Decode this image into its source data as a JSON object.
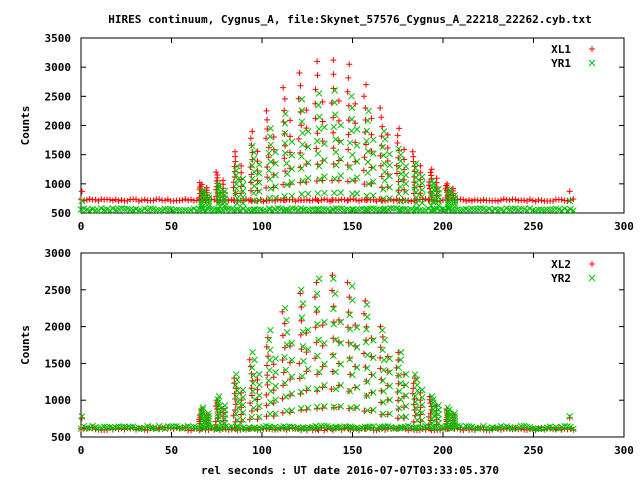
{
  "title": "HIRES continuum, Cygnus_A, file:Skynet_57576_Cygnus_A_22218_22262.cyb.txt",
  "xlabel": "rel seconds : UT date 2016-07-07T03:33:05.370",
  "colors": {
    "red": "#ff0000",
    "green": "#00c000",
    "frame": "#000000"
  },
  "chart_data": [
    {
      "type": "scatter",
      "ylabel": "Counts",
      "xlim": [
        0,
        300
      ],
      "ylim": [
        500,
        3500
      ],
      "xticks": [
        0,
        50,
        100,
        150,
        200,
        250,
        300
      ],
      "yticks": [
        500,
        1000,
        1500,
        2000,
        2500,
        3000,
        3500
      ],
      "legend_position": "top-right",
      "baseline": {
        "XL1": 720,
        "YR1": 560
      },
      "scan_peaks_x": [
        66,
        75,
        85,
        94,
        103,
        112,
        121,
        130,
        139,
        148,
        157,
        166,
        175,
        184,
        193,
        202
      ],
      "scan_peak_values": {
        "XL1": [
          1020,
          1200,
          1550,
          1900,
          2250,
          2650,
          2900,
          3100,
          3120,
          3050,
          2700,
          2300,
          1950,
          1550,
          1250,
          1000
        ],
        "YR1": [
          900,
          1000,
          1300,
          1650,
          1950,
          2200,
          2450,
          2550,
          2600,
          2500,
          2250,
          1900,
          1600,
          1350,
          1050,
          900
        ]
      },
      "series": [
        {
          "name": "XL1",
          "marker": "plus",
          "color": "#ff0000"
        },
        {
          "name": "YR1",
          "marker": "cross",
          "color": "#00c000"
        }
      ]
    },
    {
      "type": "scatter",
      "ylabel": "Counts",
      "xlim": [
        0,
        300
      ],
      "ylim": [
        500,
        3000
      ],
      "xticks": [
        0,
        50,
        100,
        150,
        200,
        250,
        300
      ],
      "yticks": [
        500,
        1000,
        1500,
        2000,
        2500,
        3000
      ],
      "legend_position": "top-right",
      "baseline": {
        "XL2": 610,
        "YR2": 630
      },
      "scan_peaks_x": [
        66,
        75,
        85,
        94,
        103,
        112,
        121,
        130,
        139,
        148,
        157,
        166,
        175,
        184,
        193,
        202
      ],
      "scan_peak_values": {
        "XL2": [
          880,
          1000,
          1300,
          1550,
          1850,
          2200,
          2450,
          2600,
          2700,
          2600,
          2350,
          2000,
          1650,
          1300,
          1050,
          880
        ],
        "YR2": [
          900,
          1050,
          1350,
          1650,
          1950,
          2250,
          2500,
          2650,
          2650,
          2550,
          2300,
          1950,
          1650,
          1350,
          1050,
          900
        ]
      },
      "series": [
        {
          "name": "XL2",
          "marker": "plus",
          "color": "#ff0000"
        },
        {
          "name": "YR2",
          "marker": "cross",
          "color": "#00c000"
        }
      ]
    }
  ]
}
